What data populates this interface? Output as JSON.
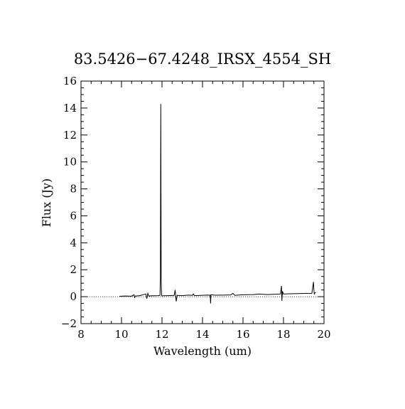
{
  "chart_data": {
    "type": "line",
    "title": "83.5426−67.4248_IRSX_4554_SH",
    "xlabel": "Wavelength (um)",
    "ylabel": "Flux (Jy)",
    "xlim": [
      8,
      20
    ],
    "ylim": [
      -2,
      16
    ],
    "x_ticks": [
      8,
      10,
      12,
      14,
      16,
      18,
      20
    ],
    "x_tick_labels": [
      "8",
      "10",
      "12",
      "14",
      "16",
      "18",
      "20"
    ],
    "y_ticks": [
      -2,
      0,
      2,
      4,
      6,
      8,
      10,
      12,
      14,
      16
    ],
    "y_tick_labels": [
      "−2",
      "0",
      "2",
      "4",
      "6",
      "8",
      "10",
      "12",
      "14",
      "16"
    ],
    "grid": false,
    "zero_line": "dotted",
    "series": [
      {
        "color": "#000000",
        "x": [
          9.9,
          10.2,
          10.5,
          10.62,
          10.65,
          10.68,
          10.9,
          11.2,
          11.25,
          11.3,
          11.35,
          11.5,
          11.8,
          11.9,
          11.92,
          11.94,
          11.96,
          11.98,
          12.0,
          12.05,
          12.3,
          12.6,
          12.65,
          12.7,
          12.75,
          13.0,
          13.3,
          13.5,
          13.55,
          13.6,
          13.9,
          14.2,
          14.38,
          14.4,
          14.42,
          14.6,
          15.0,
          15.4,
          15.5,
          15.6,
          15.9,
          16.2,
          16.5,
          16.8,
          17.2,
          17.5,
          17.85,
          17.9,
          17.92,
          17.95,
          18.0,
          18.3,
          18.7,
          19.1,
          19.4,
          19.48,
          19.5,
          19.52,
          19.55,
          19.6
        ],
        "y": [
          0.03,
          0.05,
          0.04,
          0.15,
          -0.1,
          0.05,
          0.08,
          0.2,
          -0.15,
          0.25,
          0.05,
          0.07,
          0.08,
          0.1,
          1.4,
          14.3,
          1.2,
          0.1,
          0.06,
          0.07,
          0.08,
          0.1,
          0.5,
          -0.35,
          0.1,
          0.08,
          0.12,
          0.1,
          0.2,
          0.08,
          0.1,
          0.12,
          0.11,
          -0.5,
          0.15,
          0.11,
          0.12,
          0.13,
          0.25,
          0.1,
          0.14,
          0.15,
          0.16,
          0.2,
          0.16,
          0.18,
          0.2,
          0.8,
          -0.3,
          0.4,
          0.2,
          0.22,
          0.23,
          0.24,
          0.25,
          1.1,
          0.5,
          0.2,
          0.28,
          0.3
        ]
      }
    ]
  }
}
